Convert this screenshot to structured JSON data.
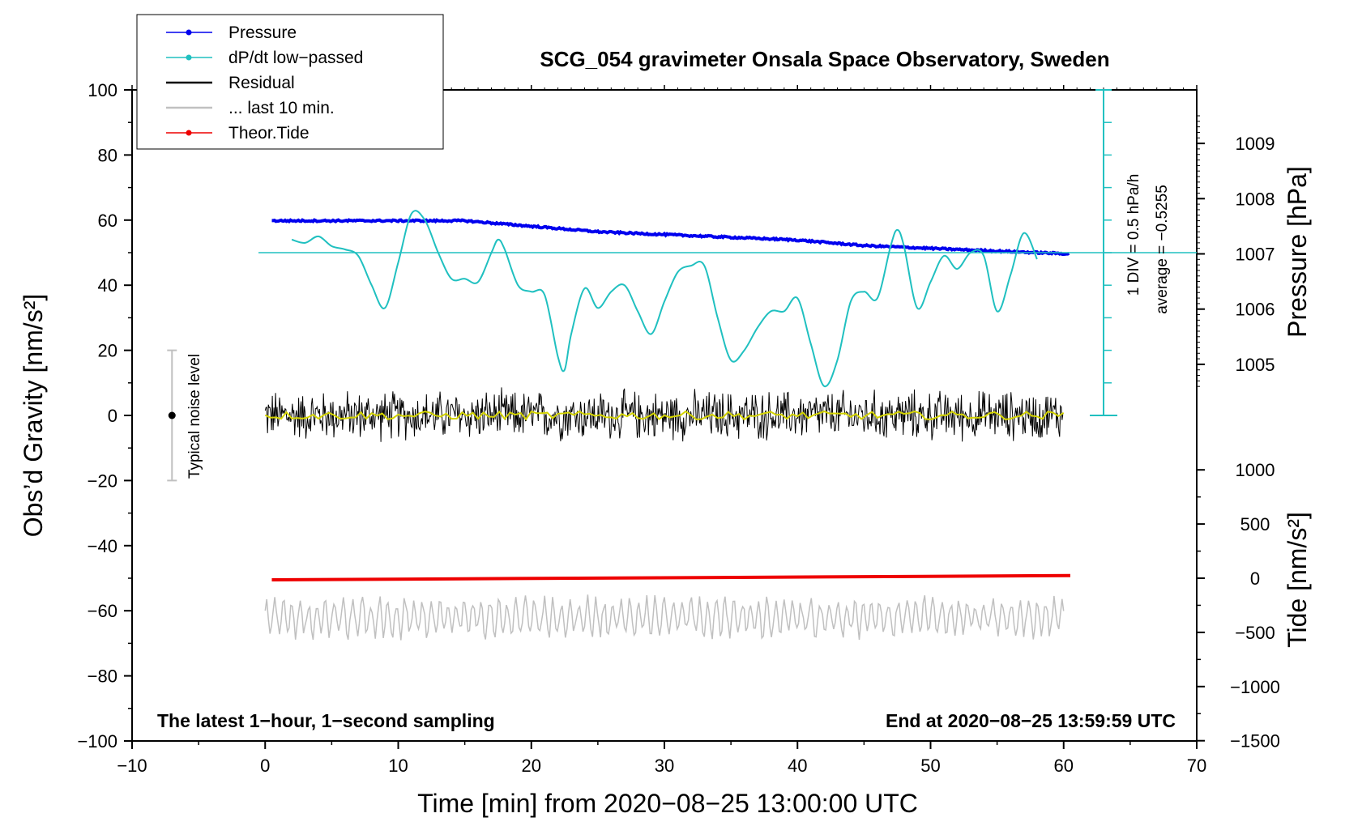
{
  "chart_data": {
    "type": "line",
    "title": "SCG_054 gravimeter Onsala Space Observatory, Sweden",
    "xlabel": "Time [min] from 2020−08−25 13:00:00 UTC",
    "ylabel_left": "Obs’d Gravity [nm/s²]",
    "ylabel_pressure": "Pressure [hPa]",
    "ylabel_tide": "Tide [nm/s²]",
    "xlim": [
      -10,
      70
    ],
    "ylim": [
      -100,
      100
    ],
    "pressure_range": [
      1004,
      1010
    ],
    "tide_range": [
      -1500,
      1500
    ],
    "x_ticks": [
      "−10",
      "0",
      "10",
      "20",
      "30",
      "40",
      "50",
      "60",
      "70"
    ],
    "x_tick_values": [
      -10,
      0,
      10,
      20,
      30,
      40,
      50,
      60,
      70
    ],
    "y_ticks": [
      "100",
      "80",
      "60",
      "40",
      "20",
      "0",
      "−20",
      "−40",
      "−60",
      "−80",
      "−100"
    ],
    "y_tick_values": [
      100,
      80,
      60,
      40,
      20,
      0,
      -20,
      -40,
      -60,
      -80,
      -100
    ],
    "pressure_ticks": [
      "1009",
      "1008",
      "1007",
      "1006",
      "1005"
    ],
    "pressure_tick_values": [
      1009,
      1008,
      1007,
      1006,
      1005
    ],
    "tide_ticks": [
      "1000",
      "500",
      "0",
      "−500",
      "−1000",
      "−1500"
    ],
    "tide_tick_values": [
      1000,
      500,
      0,
      -500,
      -1000,
      -1500
    ],
    "legend": [
      {
        "label": "Pressure",
        "color": "#0000ee",
        "style": "line-dot"
      },
      {
        "label": "dP/dt low−passed",
        "color": "#20c0c0",
        "style": "line-dot"
      },
      {
        "label": "Residual",
        "color": "#000000",
        "style": "line"
      },
      {
        "label": "... last 10 min.",
        "color": "#c0c0c0",
        "style": "line"
      },
      {
        "label": "Theor.Tide",
        "color": "#ee0000",
        "style": "line-dot"
      }
    ],
    "noise_label": "Typical noise level",
    "noise_bar": {
      "x": -7,
      "y": 0,
      "low": -20,
      "high": 20
    },
    "dpdt_scale_label": "1 DIV = 0.5 hPa/h",
    "dpdt_average_label": "average = −0.5255",
    "note_left": "The latest 1−hour, 1−second sampling",
    "note_right": "End at 2020−08−25 13:59:59 UTC",
    "series": [
      {
        "name": "Pressure",
        "unit": "hPa",
        "color": "#0000ee",
        "x": [
          0.5,
          5,
          10,
          15,
          20,
          25,
          30,
          35,
          40,
          45,
          50,
          55,
          60.5
        ],
        "y": [
          1007.6,
          1007.6,
          1007.6,
          1007.6,
          1007.5,
          1007.4,
          1007.35,
          1007.3,
          1007.25,
          1007.15,
          1007.1,
          1007.05,
          1007.0
        ]
      },
      {
        "name": "dP/dt low-passed",
        "unit": "nm/s2 axis",
        "color": "#20c0c0",
        "x": [
          2,
          3,
          4,
          5,
          6,
          7,
          8,
          9,
          10,
          11,
          12,
          13,
          14,
          15,
          16,
          17,
          17.5,
          18,
          19,
          20,
          21,
          22,
          22.5,
          23,
          24,
          25,
          26,
          27,
          28,
          29,
          30,
          31,
          32,
          33,
          34,
          35,
          36,
          37,
          38,
          39,
          40,
          41,
          42,
          43,
          44,
          45,
          46,
          47,
          47.5,
          48,
          49,
          50,
          51,
          52,
          53,
          54,
          55,
          56,
          57,
          58
        ],
        "y": [
          54,
          53,
          55,
          52,
          51,
          49,
          40,
          33,
          47,
          62,
          60,
          50,
          42,
          42,
          41,
          50,
          54,
          51,
          40,
          38,
          37,
          18,
          14,
          25,
          39,
          33,
          38,
          40,
          32,
          25,
          35,
          44,
          46,
          46,
          30,
          17,
          20,
          27,
          32,
          32,
          36,
          22,
          9,
          17,
          35,
          38,
          36,
          52,
          57,
          52,
          33,
          41,
          49,
          45,
          50,
          49,
          32,
          43,
          56,
          48
        ]
      },
      {
        "name": "Residual",
        "unit": "nm/s2",
        "color": "#000000",
        "center": 0,
        "amplitude": 6,
        "x_range": [
          0,
          60
        ]
      },
      {
        "name": "... last 10 min.",
        "unit": "nm/s2",
        "color": "#c0c0c0",
        "center": -62,
        "amplitude": 6,
        "x_range": [
          0,
          60
        ]
      },
      {
        "name": "Theor.Tide",
        "unit": "nm/s2",
        "color": "#ee0000",
        "x": [
          0.5,
          60.5
        ],
        "y": [
          -50.5,
          -49.2
        ]
      }
    ]
  }
}
